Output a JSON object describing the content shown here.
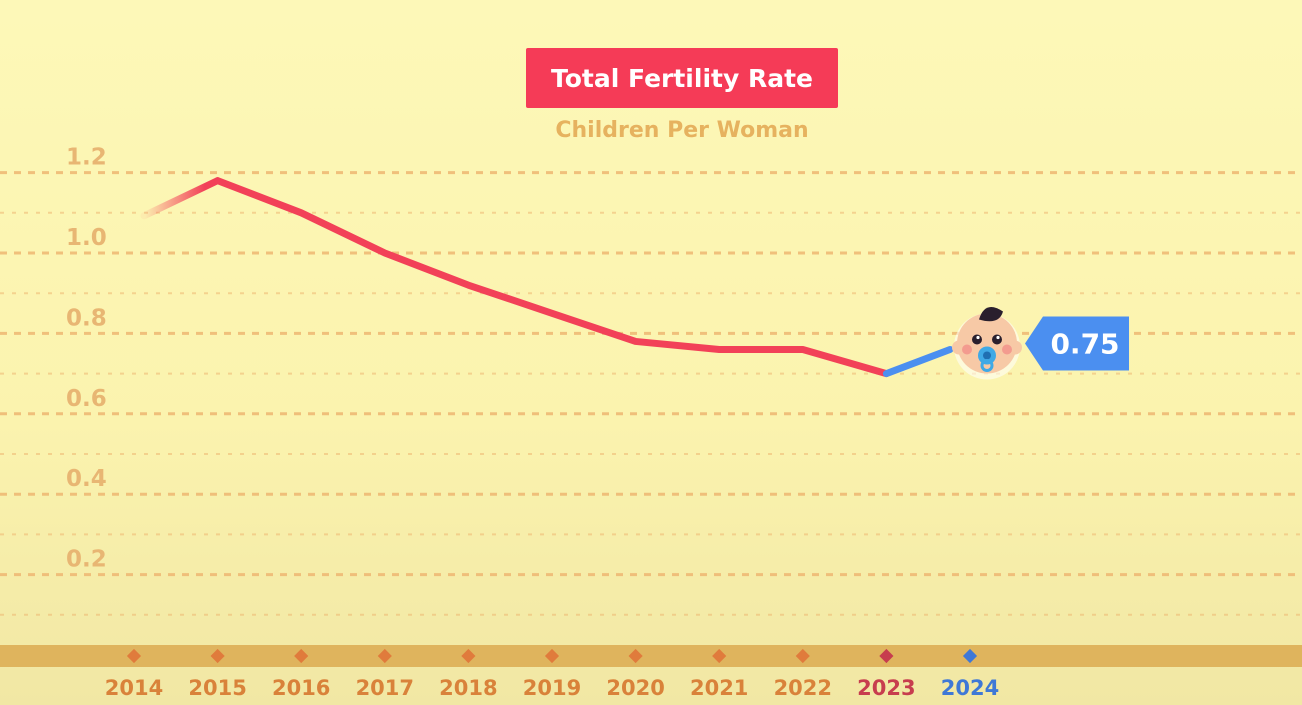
{
  "chart_data": {
    "type": "line",
    "title": "Total Fertility Rate",
    "subtitle": "Children Per Woman",
    "xlabel": "",
    "ylabel": "",
    "categories": [
      "2014",
      "2015",
      "2016",
      "2017",
      "2018",
      "2019",
      "2020",
      "2021",
      "2022",
      "2023",
      "2024"
    ],
    "series": [
      {
        "name": "Total Fertility Rate",
        "values": [
          1.1,
          1.18,
          1.1,
          1.0,
          0.92,
          0.85,
          0.78,
          0.76,
          0.76,
          0.7,
          0.75
        ]
      }
    ],
    "y_ticks": [
      "0.2",
      "0.4",
      "0.6",
      "0.8",
      "1.0",
      "1.2"
    ],
    "ylim": [
      0,
      1.2
    ],
    "grid": true,
    "highlight": {
      "category": "2024",
      "label": "0.75"
    },
    "colors": {
      "line": "#f24158",
      "line_latest": "#4b8ff0",
      "grid": "#eeb772",
      "tick_label": "#e8b673",
      "x_label": "#d9823a",
      "x_label_previous": "#c73d4e",
      "x_label_latest": "#3f78d6",
      "marker": "#e07b3c",
      "axis_band": "#dfb45d",
      "callout": "#4b8ff0",
      "title_bg": "#f53b57"
    }
  }
}
